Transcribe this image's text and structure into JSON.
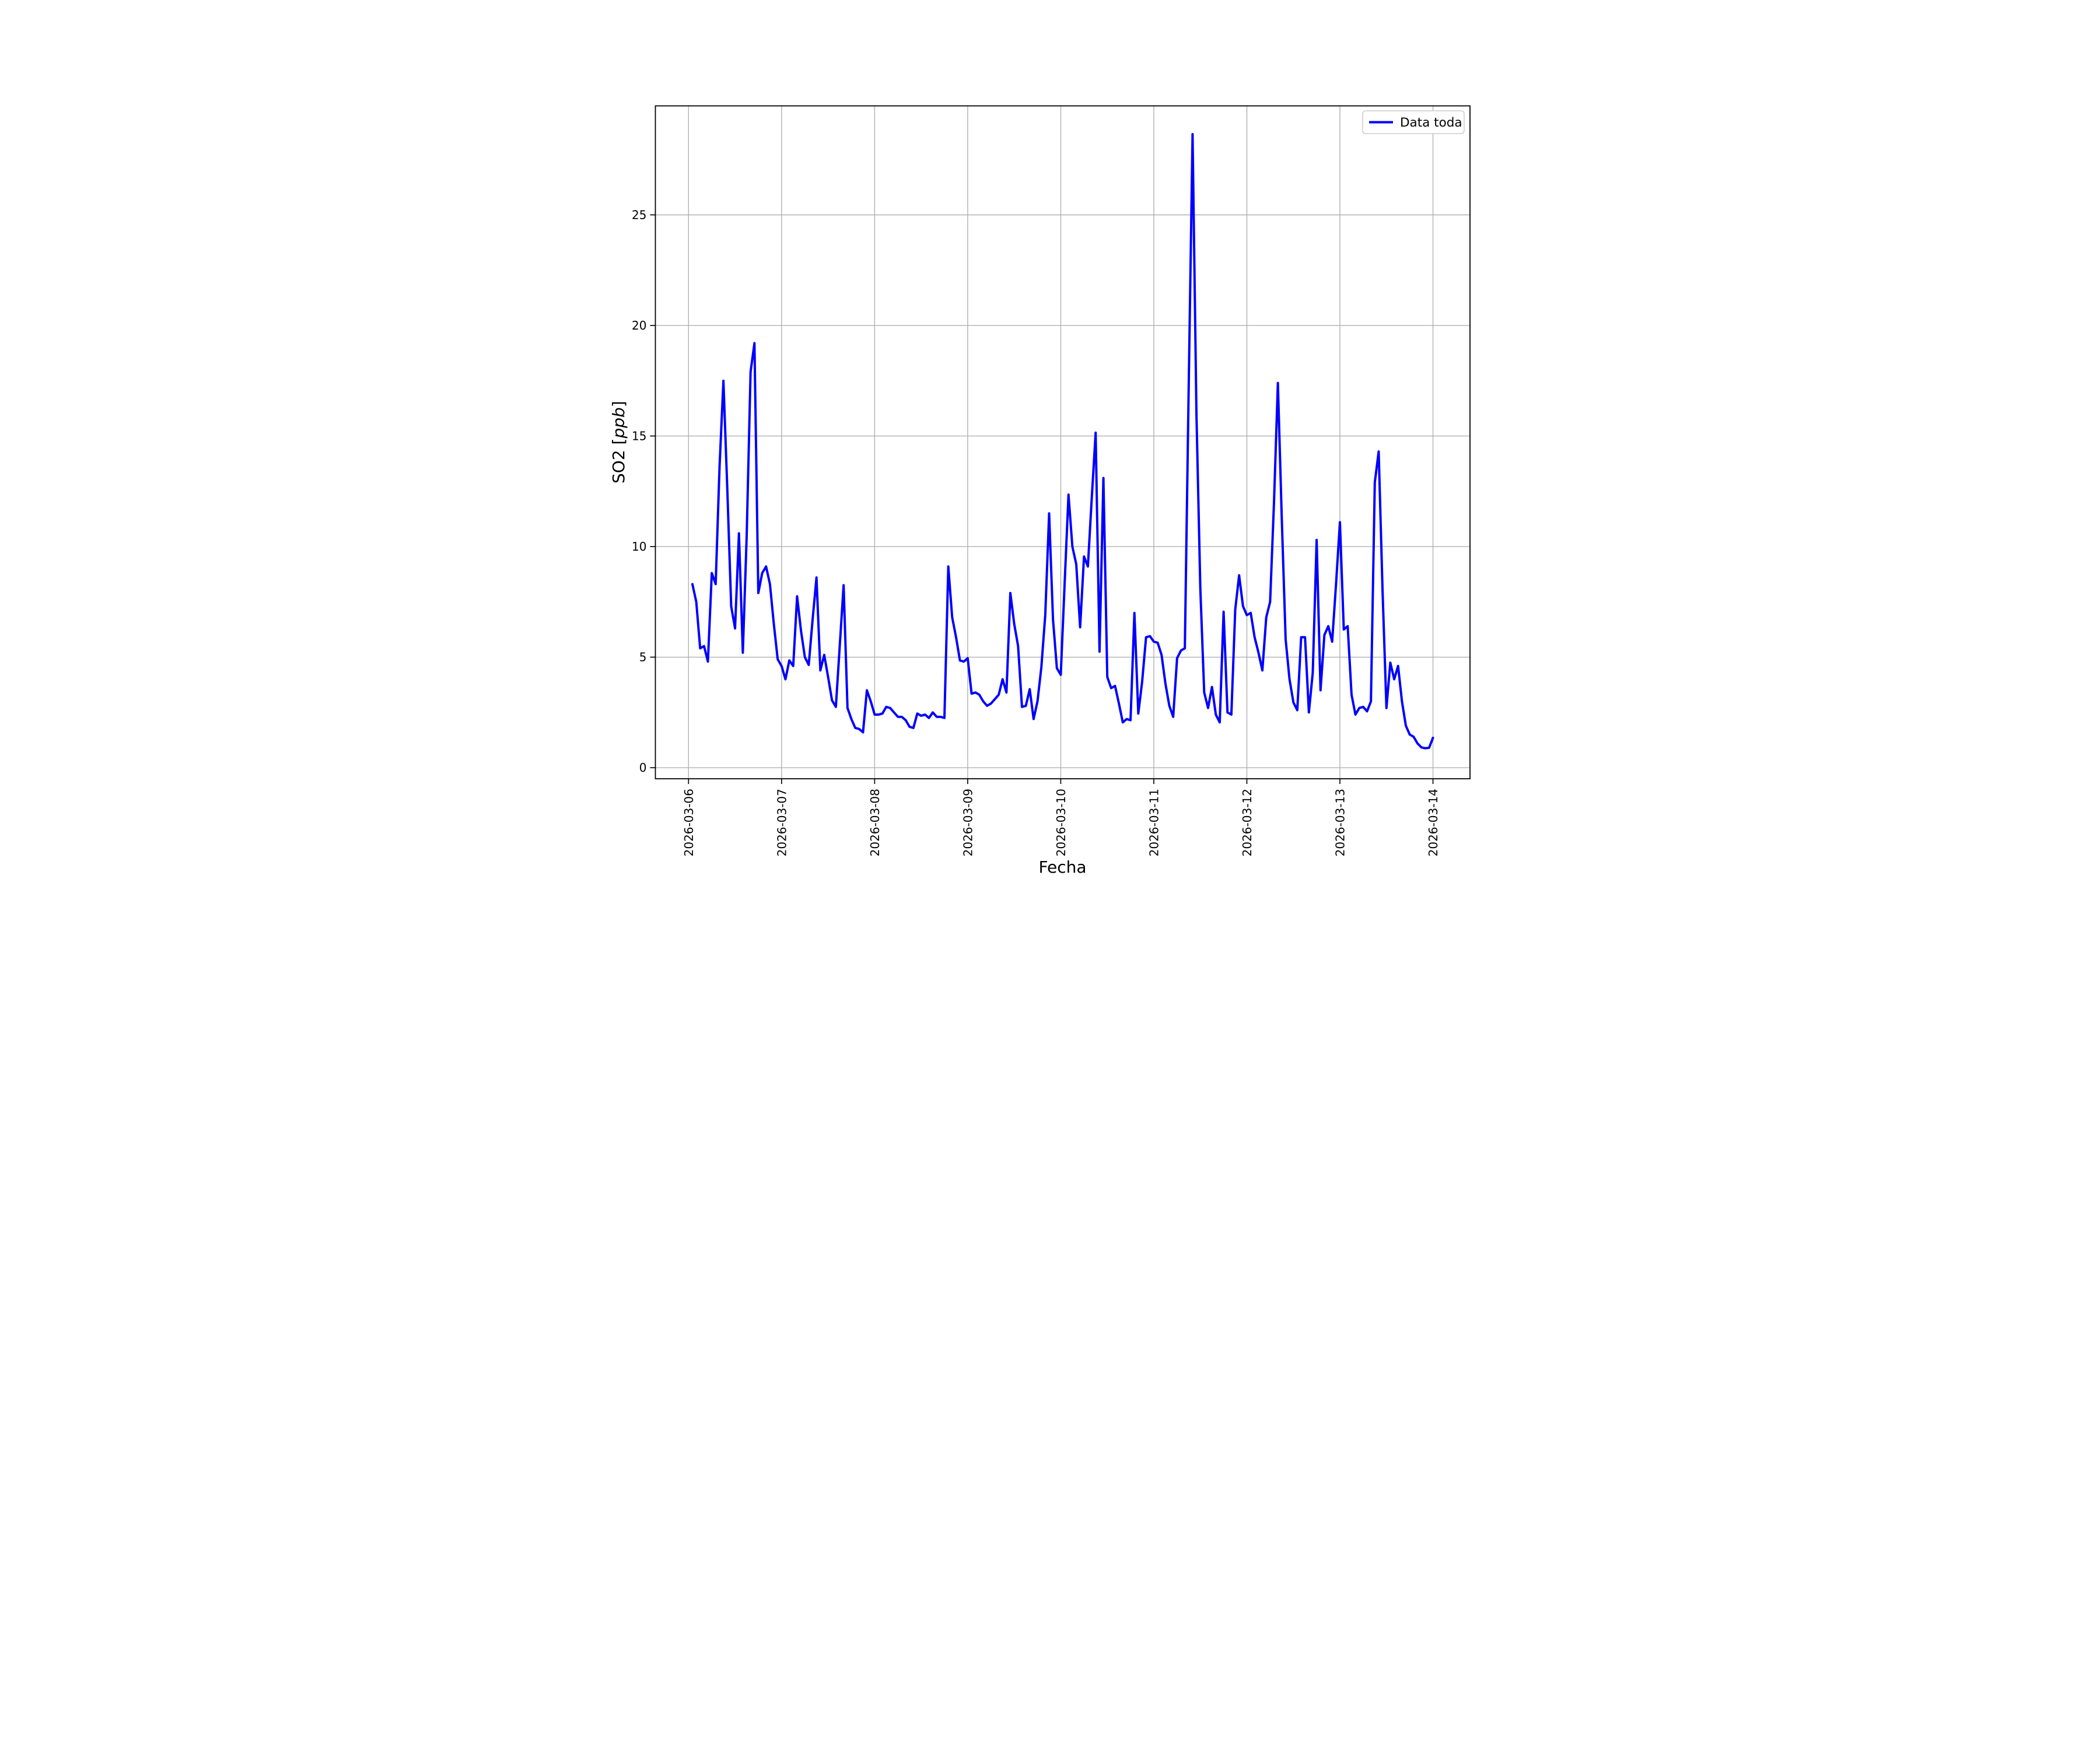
{
  "page": {
    "background": "#ffffff"
  },
  "chart_data": {
    "type": "line",
    "title": "",
    "xlabel": "Fecha",
    "ylabel_prefix": "SO2 [",
    "ylabel_unit": "ppb",
    "ylabel_suffix": "]",
    "ylabel_full": "SO2 [ppb]",
    "legend": {
      "label": "Data toda",
      "position": "upper right"
    },
    "line_color": "#0000ff",
    "grid": true,
    "grid_color": "#b0b0b0",
    "background_color": "#ffffff",
    "x_tick_labels": [
      "2026-03-06",
      "2026-03-07",
      "2026-03-08",
      "2026-03-09",
      "2026-03-10",
      "2026-03-11",
      "2026-03-12",
      "2026-03-13",
      "2026-03-14"
    ],
    "x_tick_hours": [
      0,
      24,
      48,
      72,
      96,
      120,
      144,
      168,
      192
    ],
    "y_ticks": [
      0,
      5,
      10,
      15,
      20,
      25
    ],
    "xlim_hours": [
      -8.55,
      201.55
    ],
    "ylim": [
      -0.5,
      29.93
    ],
    "x_unit": "hours since 2026-03-06 00:00",
    "series": [
      {
        "name": "Data toda",
        "start_hour": 1,
        "step_hours": 1,
        "values": [
          8.3,
          7.5,
          5.4,
          5.5,
          4.8,
          8.8,
          8.3,
          13.6,
          17.5,
          12.6,
          7.3,
          6.3,
          10.6,
          5.2,
          10.5,
          17.9,
          19.2,
          7.9,
          8.8,
          9.1,
          8.3,
          6.5,
          4.9,
          4.6,
          4.0,
          4.85,
          4.6,
          7.75,
          6.2,
          5.0,
          4.65,
          6.7,
          8.6,
          4.4,
          5.1,
          4.1,
          3.05,
          2.75,
          5.5,
          8.25,
          2.7,
          2.2,
          1.8,
          1.75,
          1.6,
          3.5,
          3.0,
          2.4,
          2.4,
          2.45,
          2.75,
          2.7,
          2.5,
          2.3,
          2.3,
          2.15,
          1.85,
          1.8,
          2.45,
          2.35,
          2.4,
          2.25,
          2.5,
          2.3,
          2.3,
          2.25,
          9.1,
          6.8,
          5.9,
          4.85,
          4.8,
          4.95,
          3.35,
          3.4,
          3.3,
          3.0,
          2.8,
          2.9,
          3.1,
          3.3,
          4.0,
          3.4,
          7.9,
          6.5,
          5.5,
          2.75,
          2.8,
          3.55,
          2.2,
          3.0,
          4.55,
          6.9,
          11.5,
          6.7,
          4.5,
          4.2,
          8.3,
          12.35,
          10.0,
          9.2,
          6.35,
          9.55,
          9.1,
          12.2,
          15.15,
          5.25,
          13.1,
          4.1,
          3.6,
          3.7,
          2.9,
          2.05,
          2.2,
          2.15,
          7.0,
          2.45,
          3.9,
          5.9,
          5.95,
          5.7,
          5.65,
          5.1,
          3.8,
          2.8,
          2.3,
          4.95,
          5.3,
          5.4,
          17.2,
          28.65,
          16.0,
          8.1,
          3.4,
          2.7,
          3.65,
          2.4,
          2.05,
          7.05,
          2.5,
          2.4,
          7.15,
          8.7,
          7.3,
          6.9,
          7.0,
          5.9,
          5.2,
          4.4,
          6.8,
          7.5,
          12.0,
          17.4,
          11.3,
          5.8,
          4.0,
          2.95,
          2.6,
          5.9,
          5.9,
          2.5,
          4.3,
          10.3,
          3.5,
          6.0,
          6.4,
          5.7,
          8.3,
          11.1,
          6.25,
          6.4,
          3.3,
          2.4,
          2.7,
          2.75,
          2.55,
          3.0,
          12.9,
          14.3,
          8.0,
          2.7,
          4.75,
          4.0,
          4.6,
          3.0,
          1.9,
          1.5,
          1.4,
          1.1,
          0.92,
          0.88,
          0.9,
          1.35
        ]
      }
    ]
  }
}
